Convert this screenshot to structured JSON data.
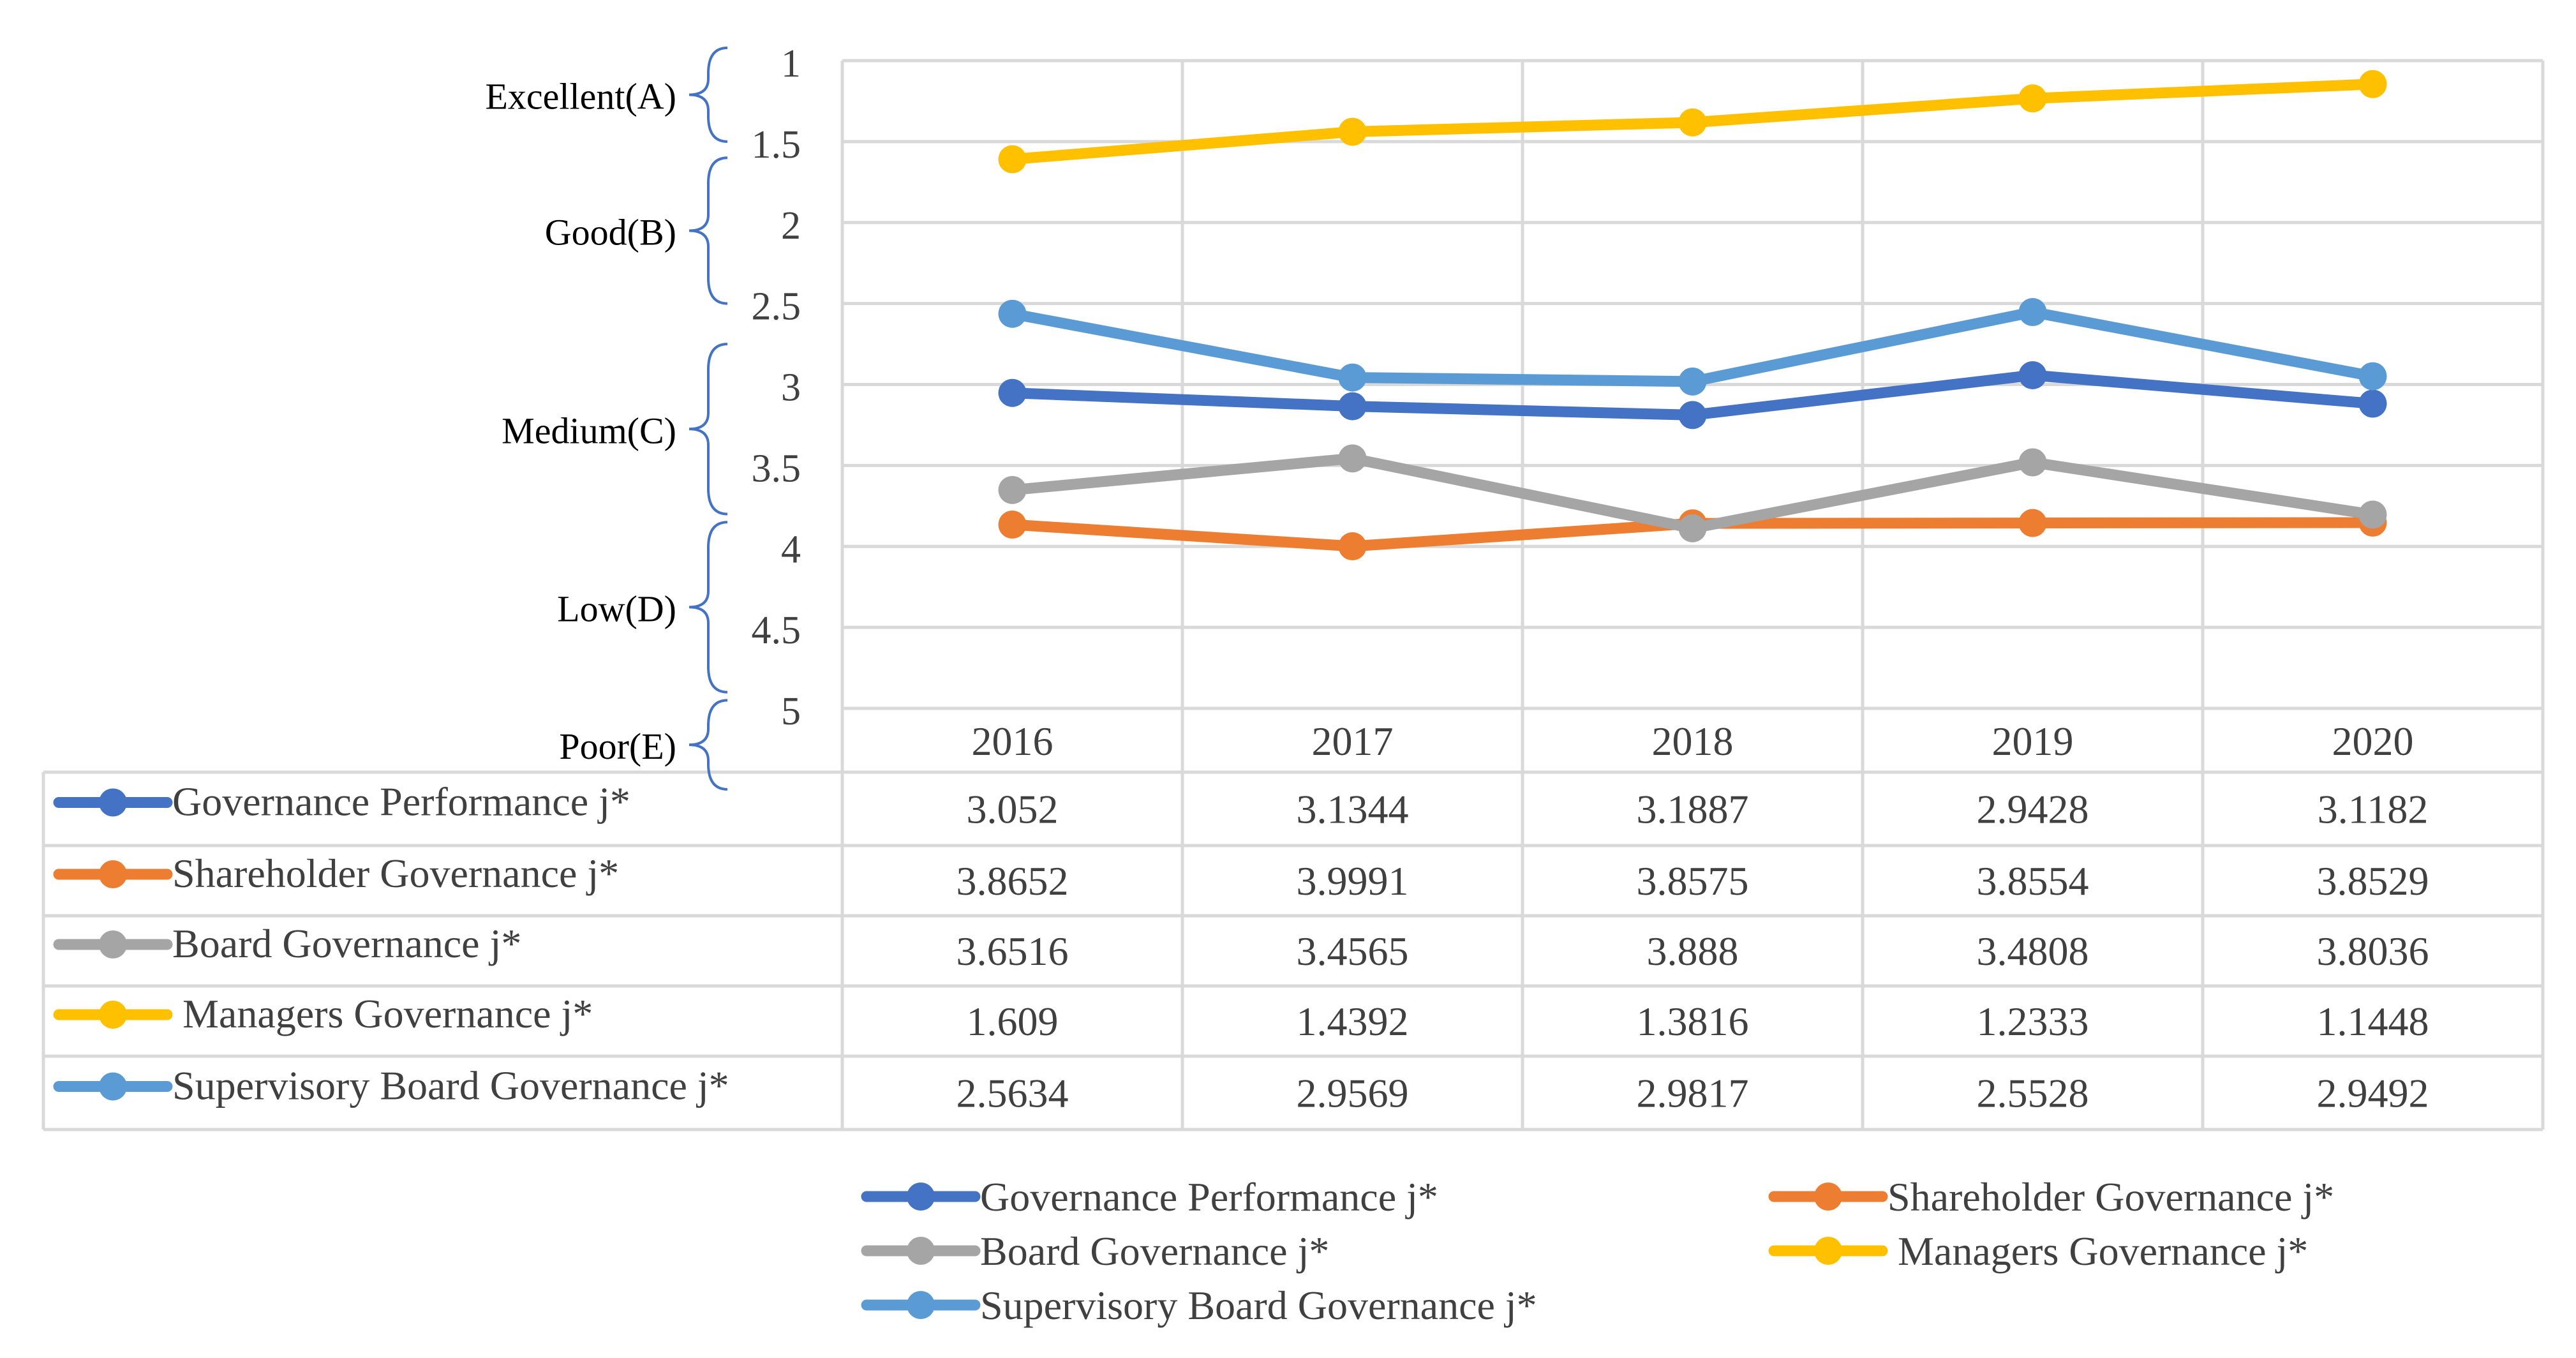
{
  "chart_data": {
    "type": "line",
    "title": "",
    "xlabel": "",
    "ylabel": "",
    "categories": [
      "2016",
      "2017",
      "2018",
      "2019",
      "2020"
    ],
    "ylim": [
      1,
      5
    ],
    "y_ticks": [
      "1",
      "1.5",
      "2",
      "2.5",
      "3",
      "3.5",
      "4",
      "4.5",
      "5"
    ],
    "y_inverted": true,
    "grid": true,
    "legend_position": "bottom",
    "grade_bands": [
      {
        "label": "Excellent(A)",
        "from": 1,
        "to": 1.5
      },
      {
        "label": "Good(B)",
        "from": 1.6,
        "to": 2.5
      },
      {
        "label": "Medium(C)",
        "from": 2.75,
        "to": 3.8
      },
      {
        "label": "Low(D)",
        "from": 3.85,
        "to": 4.9
      },
      {
        "label": "Poor(E)",
        "from": 4.95,
        "to": 5.5
      }
    ],
    "series": [
      {
        "name": "Governance Performance j*",
        "color": "#4472C4",
        "values": [
          3.052,
          3.1344,
          3.1887,
          2.9428,
          3.1182
        ],
        "labels": [
          "3.052",
          "3.1344",
          "3.1887",
          "2.9428",
          "3.1182"
        ]
      },
      {
        "name": "Shareholder Governance j*",
        "color": "#ED7D31",
        "values": [
          3.8652,
          3.9991,
          3.8575,
          3.8554,
          3.8529
        ],
        "labels": [
          "3.8652",
          "3.9991",
          "3.8575",
          "3.8554",
          "3.8529"
        ]
      },
      {
        "name": "Board Governance j*",
        "color": "#A5A5A5",
        "values": [
          3.6516,
          3.4565,
          3.888,
          3.4808,
          3.8036
        ],
        "labels": [
          "3.6516",
          "3.4565",
          "3.888",
          "3.4808",
          "3.8036"
        ]
      },
      {
        "name": " Managers Governance j*",
        "color": "#FFC000",
        "values": [
          1.609,
          1.4392,
          1.3816,
          1.2333,
          1.1448
        ],
        "labels": [
          "1.609",
          "1.4392",
          "1.3816",
          "1.2333",
          "1.1448"
        ]
      },
      {
        "name": "Supervisory Board Governance j*",
        "color": "#5B9BD5",
        "values": [
          2.5634,
          2.9569,
          2.9817,
          2.5528,
          2.9492
        ],
        "labels": [
          "2.5634",
          "2.9569",
          "2.9817",
          "2.5528",
          "2.9492"
        ]
      }
    ]
  }
}
